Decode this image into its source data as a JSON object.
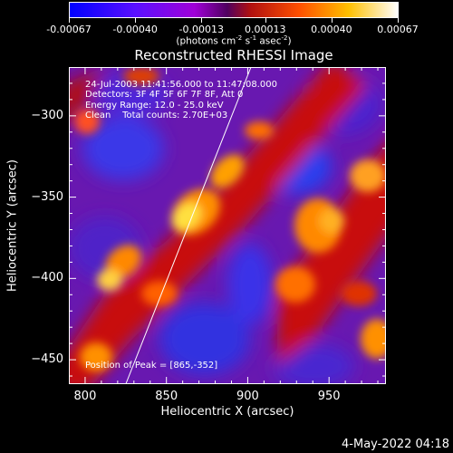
{
  "colorbar": {
    "tick_labels": [
      "-0.00067",
      "-0.00040",
      "-0.00013",
      "0.00013",
      "0.00040",
      "0.00067"
    ],
    "range": [
      -0.00067,
      0.00067
    ],
    "units_main": "(photons cm",
    "units_exp1": "-2",
    "units_mid": " s",
    "units_exp2": "-1",
    "units_mid2": " asec",
    "units_exp3": "-2",
    "units_end": ")",
    "colors": [
      "#0000ff",
      "#5a00ff",
      "#a000e0",
      "#6a1a8a",
      "#e03000",
      "#ff8000",
      "#ffd000",
      "#ffffff"
    ]
  },
  "title": "Reconstructed RHESSI Image",
  "info": {
    "line1": "24-Jul-2003 11:41:56.000 to 11:47:08.000",
    "line2": "Detectors: 3F 4F 5F 6F 7F 8F, Att 0",
    "line3": "Energy Range: 12.0 - 25.0 keV",
    "line4": "Clean    Total counts: 2.70E+03",
    "peak": "Position of Peak = [865,-352]"
  },
  "chart_data": {
    "type": "heatmap",
    "title": "Reconstructed RHESSI Image",
    "xlabel": "Heliocentric X (arcsec)",
    "ylabel": "Heliocentric Y (arcsec)",
    "xlim": [
      790,
      985
    ],
    "ylim": [
      -465,
      -270
    ],
    "xticks": [
      800,
      850,
      900,
      950
    ],
    "yticks": [
      -300,
      -350,
      -400,
      -450
    ],
    "xtick_labels": [
      "800",
      "850",
      "900",
      "950"
    ],
    "ytick_labels": [
      "−300",
      "−350",
      "−400",
      "−450"
    ],
    "peak": [
      865,
      -352
    ],
    "limb_line": [
      [
        825,
        -465
      ],
      [
        902,
        -270
      ]
    ]
  },
  "timestamp": "4-May-2022 04:18"
}
